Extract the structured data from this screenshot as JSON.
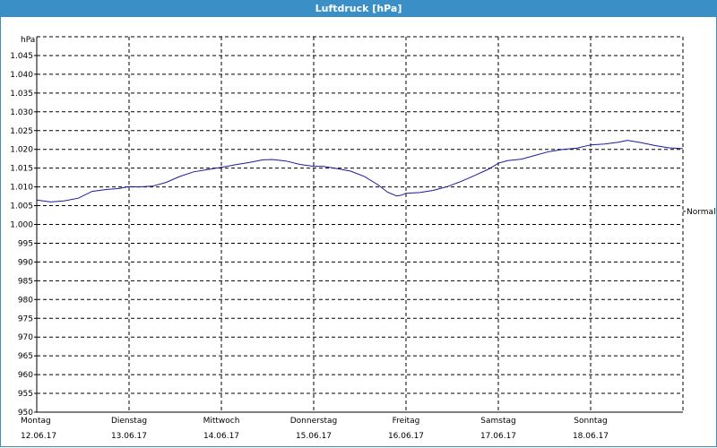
{
  "window": {
    "title": "Luftdruck [hPa]"
  },
  "colors": {
    "accent": "#3a8fc6",
    "series": "#1a1a99"
  },
  "chart_data": {
    "type": "line",
    "title": "Luftdruck [hPa]",
    "ylabel": "hPa",
    "xlabel": "",
    "ylim": [
      950,
      1050
    ],
    "y_ticks": [
      "950",
      "955",
      "960",
      "965",
      "970",
      "975",
      "980",
      "985",
      "990",
      "995",
      "1.000",
      "1.005",
      "1.010",
      "1.015",
      "1.020",
      "1.025",
      "1.030",
      "1.035",
      "1.040",
      "1.045"
    ],
    "y_tick_values": [
      950,
      955,
      960,
      965,
      970,
      975,
      980,
      985,
      990,
      995,
      1000,
      1005,
      1010,
      1015,
      1020,
      1025,
      1030,
      1035,
      1040,
      1045
    ],
    "x_ticks": [
      {
        "day": "Montag",
        "date": "12.06.17",
        "x": 0
      },
      {
        "day": "Dienstag",
        "date": "13.06.17",
        "x": 1
      },
      {
        "day": "Mittwoch",
        "date": "14.06.17",
        "x": 2
      },
      {
        "day": "Donnerstag",
        "date": "15.06.17",
        "x": 3
      },
      {
        "day": "Freitag",
        "date": "16.06.17",
        "x": 4
      },
      {
        "day": "Samstag",
        "date": "17.06.17",
        "x": 5
      },
      {
        "day": "Sonntag",
        "date": "18.06.17",
        "x": 6
      }
    ],
    "xlim": [
      0,
      7
    ],
    "grid": true,
    "reference_label": "Normal",
    "reference_value": 1003.5,
    "series": [
      {
        "values": [
          [
            0.0,
            1006.5
          ],
          [
            0.15,
            1006.0
          ],
          [
            0.3,
            1006.3
          ],
          [
            0.45,
            1007.0
          ],
          [
            0.6,
            1008.8
          ],
          [
            0.75,
            1009.3
          ],
          [
            0.9,
            1009.6
          ],
          [
            1.0,
            1010.1
          ],
          [
            1.1,
            1010.0
          ],
          [
            1.25,
            1010.2
          ],
          [
            1.4,
            1011.2
          ],
          [
            1.55,
            1012.8
          ],
          [
            1.7,
            1014.0
          ],
          [
            1.85,
            1014.6
          ],
          [
            2.0,
            1015.2
          ],
          [
            2.15,
            1015.9
          ],
          [
            2.3,
            1016.5
          ],
          [
            2.45,
            1017.2
          ],
          [
            2.55,
            1017.3
          ],
          [
            2.7,
            1016.9
          ],
          [
            2.85,
            1016.0
          ],
          [
            3.0,
            1015.5
          ],
          [
            3.1,
            1015.5
          ],
          [
            3.25,
            1014.9
          ],
          [
            3.4,
            1014.2
          ],
          [
            3.55,
            1012.8
          ],
          [
            3.7,
            1010.5
          ],
          [
            3.8,
            1008.6
          ],
          [
            3.9,
            1007.6
          ],
          [
            3.95,
            1007.8
          ],
          [
            4.0,
            1008.3
          ],
          [
            4.15,
            1008.5
          ],
          [
            4.3,
            1009.1
          ],
          [
            4.45,
            1010.1
          ],
          [
            4.6,
            1011.5
          ],
          [
            4.75,
            1013.1
          ],
          [
            4.9,
            1014.8
          ],
          [
            5.0,
            1016.3
          ],
          [
            5.1,
            1017.0
          ],
          [
            5.25,
            1017.4
          ],
          [
            5.4,
            1018.4
          ],
          [
            5.55,
            1019.4
          ],
          [
            5.7,
            1020.0
          ],
          [
            5.85,
            1020.3
          ],
          [
            6.0,
            1021.2
          ],
          [
            6.15,
            1021.4
          ],
          [
            6.3,
            1021.9
          ],
          [
            6.4,
            1022.4
          ],
          [
            6.55,
            1021.8
          ],
          [
            6.7,
            1021.0
          ],
          [
            6.85,
            1020.4
          ],
          [
            7.0,
            1020.2
          ]
        ]
      }
    ]
  }
}
